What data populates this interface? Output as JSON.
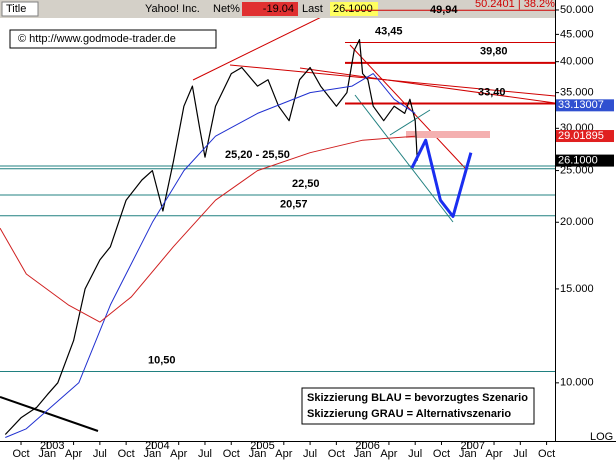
{
  "chart_data": {
    "type": "line",
    "log_scale": true,
    "header": {
      "title": "Title",
      "symbol": "Yahoo! Inc.",
      "net_label": "Net%",
      "net": -19.04,
      "last_label": "Last",
      "last": "26.1000"
    },
    "watermark": "© http://www.godmode-trader.de",
    "y_axis_label": "LOG",
    "top_annotation": "50.2401 | 38.2%",
    "xlim": [
      2002.55,
      2007.83
    ],
    "xticks": [
      {
        "value": 2002.75,
        "label": "Oct"
      },
      {
        "value": 2003.0,
        "label": "Jan"
      },
      {
        "value": 2003.25,
        "label": "Apr"
      },
      {
        "value": 2003.5,
        "label": "Jul"
      },
      {
        "value": 2003.75,
        "label": "Oct"
      },
      {
        "value": 2004.0,
        "label": "Jan"
      },
      {
        "value": 2004.25,
        "label": "Apr"
      },
      {
        "value": 2004.5,
        "label": "Jul"
      },
      {
        "value": 2004.75,
        "label": "Oct"
      },
      {
        "value": 2005.0,
        "label": "Jan"
      },
      {
        "value": 2005.25,
        "label": "Apr"
      },
      {
        "value": 2005.5,
        "label": "Jul"
      },
      {
        "value": 2005.75,
        "label": "Oct"
      },
      {
        "value": 2006.0,
        "label": "Jan"
      },
      {
        "value": 2006.25,
        "label": "Apr"
      },
      {
        "value": 2006.5,
        "label": "Jul"
      },
      {
        "value": 2006.75,
        "label": "Oct"
      },
      {
        "value": 2007.0,
        "label": "Jan"
      },
      {
        "value": 2007.25,
        "label": "Apr"
      },
      {
        "value": 2007.5,
        "label": "Jul"
      },
      {
        "value": 2007.75,
        "label": "Oct"
      }
    ],
    "year_ticks": [
      2003,
      2004,
      2005,
      2006,
      2007
    ],
    "ylim": [
      7.78,
      52.2
    ],
    "yticks": [
      {
        "value": 10,
        "label": "10.000"
      },
      {
        "value": 15,
        "label": "15.000"
      },
      {
        "value": 20,
        "label": "20.000"
      },
      {
        "value": 25,
        "label": "25.000"
      },
      {
        "value": 30,
        "label": "30.000"
      },
      {
        "value": 35,
        "label": "35.000"
      },
      {
        "value": 40,
        "label": "40.000"
      },
      {
        "value": 45,
        "label": "45.000"
      },
      {
        "value": 50,
        "label": "50.000"
      }
    ],
    "series": [
      {
        "color": "#000000",
        "width": 1.2,
        "x": [
          2002.6,
          2002.75,
          2002.9,
          2003.0,
          2003.1,
          2003.25,
          2003.36,
          2003.5,
          2003.6,
          2003.75,
          2003.9,
          2004.0,
          2004.1,
          2004.2,
          2004.3,
          2004.38,
          2004.45,
          2004.5,
          2004.6,
          2004.75,
          2004.85,
          2005.0,
          2005.1,
          2005.2,
          2005.3,
          2005.4,
          2005.5,
          2005.6,
          2005.75,
          2005.85,
          2005.92,
          2005.97,
          2006.0,
          2006.05,
          2006.1,
          2006.2,
          2006.3,
          2006.4,
          2006.45,
          2006.5,
          2006.52
        ],
        "values": [
          8.0,
          8.6,
          9.0,
          9.5,
          10.0,
          12.0,
          15.0,
          17.0,
          18.0,
          22.0,
          24.0,
          25.0,
          21.0,
          26.0,
          33.0,
          36.0,
          30.0,
          26.5,
          33.0,
          38.0,
          39.0,
          36.0,
          37.0,
          33.0,
          31.0,
          37.0,
          39.0,
          36.0,
          33.0,
          35.0,
          42.0,
          44.0,
          38.0,
          37.0,
          33.0,
          31.0,
          33.0,
          32.0,
          34.0,
          31.0,
          26.1
        ]
      },
      {
        "color": "#2030d0",
        "width": 1,
        "x": [
          2002.6,
          2002.8,
          2003.3,
          2003.6,
          2004.0,
          2004.3,
          2004.6,
          2005.0,
          2005.5,
          2005.9,
          2006.1,
          2006.3,
          2006.5
        ],
        "values": [
          7.9,
          8.2,
          10.0,
          14.0,
          20.0,
          25.0,
          29.0,
          32.0,
          35.0,
          36.0,
          38.0,
          34.0,
          32.0
        ]
      },
      {
        "color": "#d02020",
        "width": 1,
        "x": [
          2002.55,
          2002.8,
          2003.2,
          2003.5,
          2003.8,
          2004.2,
          2004.6,
          2005.0,
          2005.5,
          2006.0,
          2006.5
        ],
        "values": [
          19.5,
          16.0,
          14.0,
          13.0,
          14.5,
          18.0,
          22.0,
          25.0,
          27.0,
          28.5,
          29.0
        ]
      },
      {
        "color": "#1a2ef0",
        "width": 3,
        "x": [
          2006.47,
          2006.6,
          2006.74,
          2006.86,
          2007.03
        ],
        "values": [
          25.3,
          28.5,
          22.0,
          20.5,
          27.0
        ]
      }
    ],
    "levels": [
      {
        "value": 49.94,
        "label": "49,94",
        "color": "#d00000"
      },
      {
        "value": 43.45,
        "label": "43,45",
        "color": "#d00000"
      },
      {
        "value": 39.8,
        "label": "39,80",
        "color": "#d00000"
      },
      {
        "value": 33.4,
        "label": "33,40",
        "color": "#d00000"
      },
      {
        "low": 25.2,
        "high": 25.5,
        "label": "25,20 - 25,50",
        "color": "#208080"
      },
      {
        "value": 22.5,
        "label": "22,50",
        "color": "#208080"
      },
      {
        "value": 20.57,
        "label": "20,57",
        "color": "#208080"
      },
      {
        "value": 10.5,
        "label": "10,50",
        "color": "#208080"
      }
    ],
    "price_markers": [
      {
        "value": 33.13007,
        "label": "33.13007",
        "color": "#3050d0"
      },
      {
        "value": 29.01895,
        "label": "29.01895",
        "color": "#e02020"
      },
      {
        "value": 26.1,
        "label": "26.1000",
        "color": "#000000"
      }
    ],
    "legend_lines": [
      "Skizzierung BLAU = bevorzugtes Szenario",
      "Skizzierung GRAU = Alternativszenario"
    ]
  }
}
